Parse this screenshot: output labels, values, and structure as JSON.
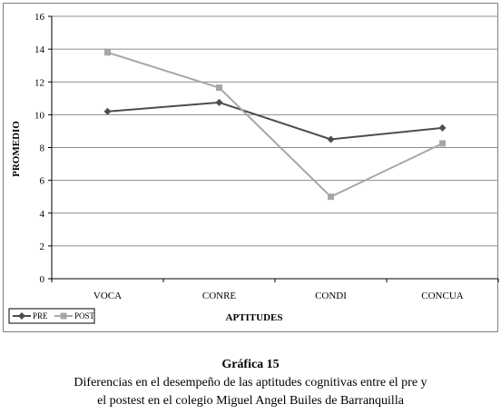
{
  "chart_data": {
    "type": "line",
    "categories": [
      "VOCA",
      "CONRE",
      "CONDI",
      "CONCUA"
    ],
    "series": [
      {
        "name": "PRE",
        "values": [
          10.2,
          10.75,
          8.5,
          9.2
        ],
        "color": "#4d4d4d",
        "marker": "diamond"
      },
      {
        "name": "POST",
        "values": [
          13.8,
          11.65,
          5.0,
          8.25
        ],
        "color": "#a6a6a6",
        "marker": "square"
      }
    ],
    "title": "",
    "xlabel": "APTITUDES",
    "ylabel": "PROMEDIO",
    "ylim": [
      0,
      16
    ],
    "yticks": [
      "0",
      "2",
      "4",
      "6",
      "8",
      "10",
      "12",
      "14",
      "16"
    ],
    "grid": true,
    "legend": "bottom-left"
  },
  "caption": {
    "title": "Gráfica 15",
    "line1": "Diferencias en el desempeño de las aptitudes cognitivas entre el pre y",
    "line2": "el postest en el colegio Miguel Angel Builes de Barranquilla"
  }
}
